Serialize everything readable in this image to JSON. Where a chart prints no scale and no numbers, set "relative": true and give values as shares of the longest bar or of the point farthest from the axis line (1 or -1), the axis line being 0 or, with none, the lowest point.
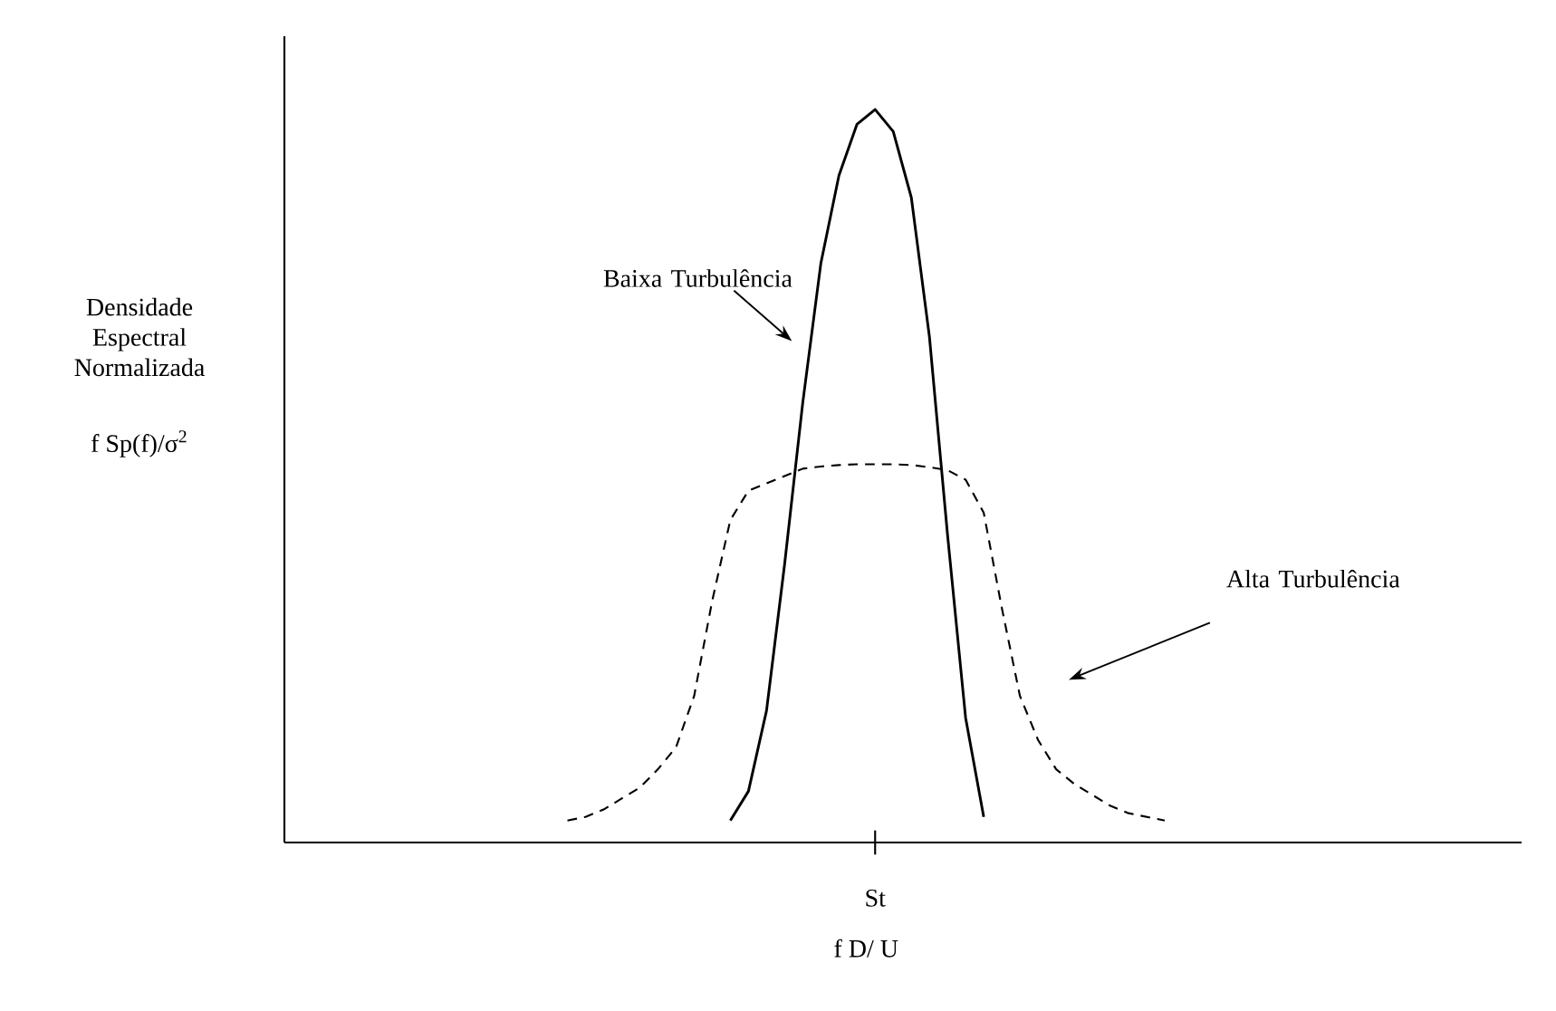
{
  "chart_data": {
    "type": "line",
    "relative": true,
    "xlabel": "f D/ U",
    "categories": [
      null,
      null,
      null,
      null,
      null,
      null,
      null,
      null,
      null,
      null,
      null,
      null,
      null,
      null,
      null,
      null,
      null,
      null,
      null,
      null,
      null,
      null,
      null,
      null,
      null,
      null,
      null,
      null,
      null,
      null,
      null,
      null,
      null,
      null
    ],
    "series": [
      {
        "color": "#000000",
        "line_style": "solid",
        "values": [
          null,
          null,
          null,
          null,
          null,
          null,
          null,
          null,
          null,
          0.03,
          0.07,
          0.18,
          0.38,
          0.6,
          0.79,
          0.91,
          0.98,
          1,
          0.97,
          0.88,
          0.69,
          0.42,
          0.17,
          0.035,
          null,
          null,
          null,
          null,
          null,
          null,
          null,
          null,
          null,
          null
        ]
      },
      {
        "color": "#000000",
        "line_style": "dashed",
        "values": [
          0.03,
          0.035,
          0.045,
          0.06,
          0.075,
          0.1,
          0.13,
          0.2,
          0.33,
          0.44,
          0.48,
          0.49,
          0.5,
          0.51,
          0.513,
          0.515,
          0.516,
          0.516,
          0.516,
          0.515,
          0.512,
          0.508,
          0.495,
          0.45,
          0.32,
          0.2,
          0.14,
          0.1,
          0.08,
          0.065,
          0.05,
          0.04,
          0.035,
          0.03
        ]
      }
    ],
    "annotations": [
      "St",
      "Baixa Turbulência",
      "Alta Turbulência",
      "Densidade Espectral Normalizada",
      "f Sp(f)/σ$^{2}$"
    ]
  }
}
